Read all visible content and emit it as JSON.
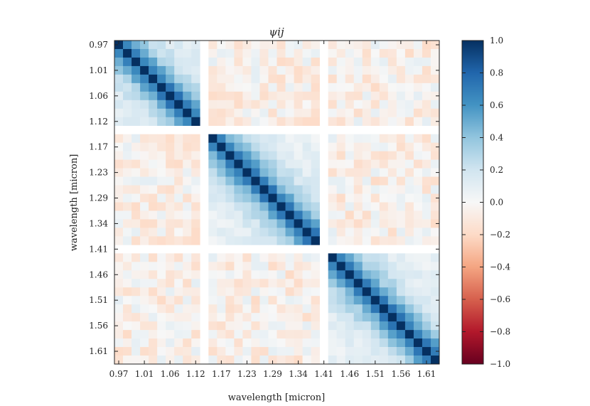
{
  "chart_data": {
    "type": "heatmap",
    "title": "ψij",
    "xlabel": "wavelength [micron]",
    "ylabel": "wavelength [micron]",
    "colormap": "RdBu",
    "vmin": -1.0,
    "vmax": 1.0,
    "n_bins": 38,
    "bands": [
      {
        "start": 0,
        "end": 9
      },
      {
        "start": 11,
        "end": 23
      },
      {
        "start": 25,
        "end": 37
      }
    ],
    "gap_bins": [
      10,
      24
    ],
    "x_tick_labels": [
      "0.97",
      "1.01",
      "1.06",
      "1.12",
      "1.17",
      "1.23",
      "1.29",
      "1.34",
      "1.41",
      "1.46",
      "1.51",
      "1.56",
      "1.61"
    ],
    "y_tick_labels": [
      "0.97",
      "1.01",
      "1.06",
      "1.12",
      "1.17",
      "1.23",
      "1.29",
      "1.34",
      "1.41",
      "1.46",
      "1.51",
      "1.56",
      "1.61"
    ],
    "colorbar_ticks": [
      "1.0",
      "0.8",
      "0.6",
      "0.4",
      "0.2",
      "0.0",
      "−0.2",
      "−0.4",
      "−0.6",
      "−0.8",
      "−1.0"
    ],
    "colorbar_values": [
      1.0,
      0.8,
      0.6,
      0.4,
      0.2,
      0.0,
      -0.2,
      -0.4,
      -0.6,
      -0.8,
      -1.0
    ],
    "off_diagonal_typical": {
      "within_band": 0.15,
      "cross_band": -0.05
    },
    "diagonal_value": 1.0
  }
}
